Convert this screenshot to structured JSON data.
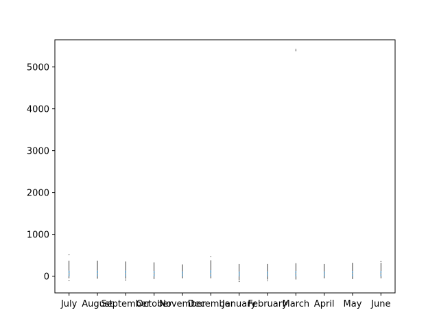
{
  "chart_data": {
    "type": "box",
    "title": "",
    "xlabel": "",
    "ylabel": "",
    "categories": [
      "July",
      "August",
      "September",
      "October",
      "November",
      "December",
      "January",
      "February",
      "March",
      "April",
      "May",
      "June"
    ],
    "ylim": [
      -400,
      5650
    ],
    "yticks": [
      0,
      1000,
      2000,
      3000,
      4000,
      5000
    ],
    "boxes": [
      {
        "category": "July",
        "whisker_low": -50,
        "q1": 0,
        "median": 60,
        "q3": 130,
        "whisker_high": 370,
        "outliers": [
          -100,
          510
        ]
      },
      {
        "category": "August",
        "whisker_low": -60,
        "q1": 0,
        "median": 60,
        "q3": 130,
        "whisker_high": 370,
        "outliers": []
      },
      {
        "category": "September",
        "whisker_low": -60,
        "q1": 0,
        "median": 60,
        "q3": 130,
        "whisker_high": 350,
        "outliers": [
          -90
        ]
      },
      {
        "category": "October",
        "whisker_low": -70,
        "q1": 0,
        "median": 60,
        "q3": 120,
        "whisker_high": 330,
        "outliers": []
      },
      {
        "category": "November",
        "whisker_low": -50,
        "q1": 0,
        "median": 50,
        "q3": 110,
        "whisker_high": 280,
        "outliers": []
      },
      {
        "category": "December",
        "whisker_low": -50,
        "q1": 0,
        "median": 60,
        "q3": 140,
        "whisker_high": 380,
        "outliers": [
          470
        ]
      },
      {
        "category": "January",
        "whisker_low": -100,
        "q1": 0,
        "median": 50,
        "q3": 110,
        "whisker_high": 290,
        "outliers": [
          -130
        ]
      },
      {
        "category": "February",
        "whisker_low": -80,
        "q1": 0,
        "median": 50,
        "q3": 110,
        "whisker_high": 290,
        "outliers": [
          -110
        ]
      },
      {
        "category": "March",
        "whisker_low": -80,
        "q1": 0,
        "median": 60,
        "q3": 120,
        "whisker_high": 310,
        "outliers": [
          5390,
          5420
        ]
      },
      {
        "category": "April",
        "whisker_low": -50,
        "q1": 0,
        "median": 50,
        "q3": 110,
        "whisker_high": 290,
        "outliers": []
      },
      {
        "category": "May",
        "whisker_low": -70,
        "q1": 0,
        "median": 60,
        "q3": 120,
        "whisker_high": 320,
        "outliers": []
      },
      {
        "category": "June",
        "whisker_low": -50,
        "q1": 0,
        "median": 60,
        "q3": 120,
        "whisker_high": 320,
        "outliers": [
          350
        ]
      }
    ],
    "grid": false,
    "legend": "none",
    "colors": {
      "box": "#1f77b4",
      "median": "#ff7f0e",
      "axis": "#000000",
      "background": "#ffffff"
    }
  }
}
